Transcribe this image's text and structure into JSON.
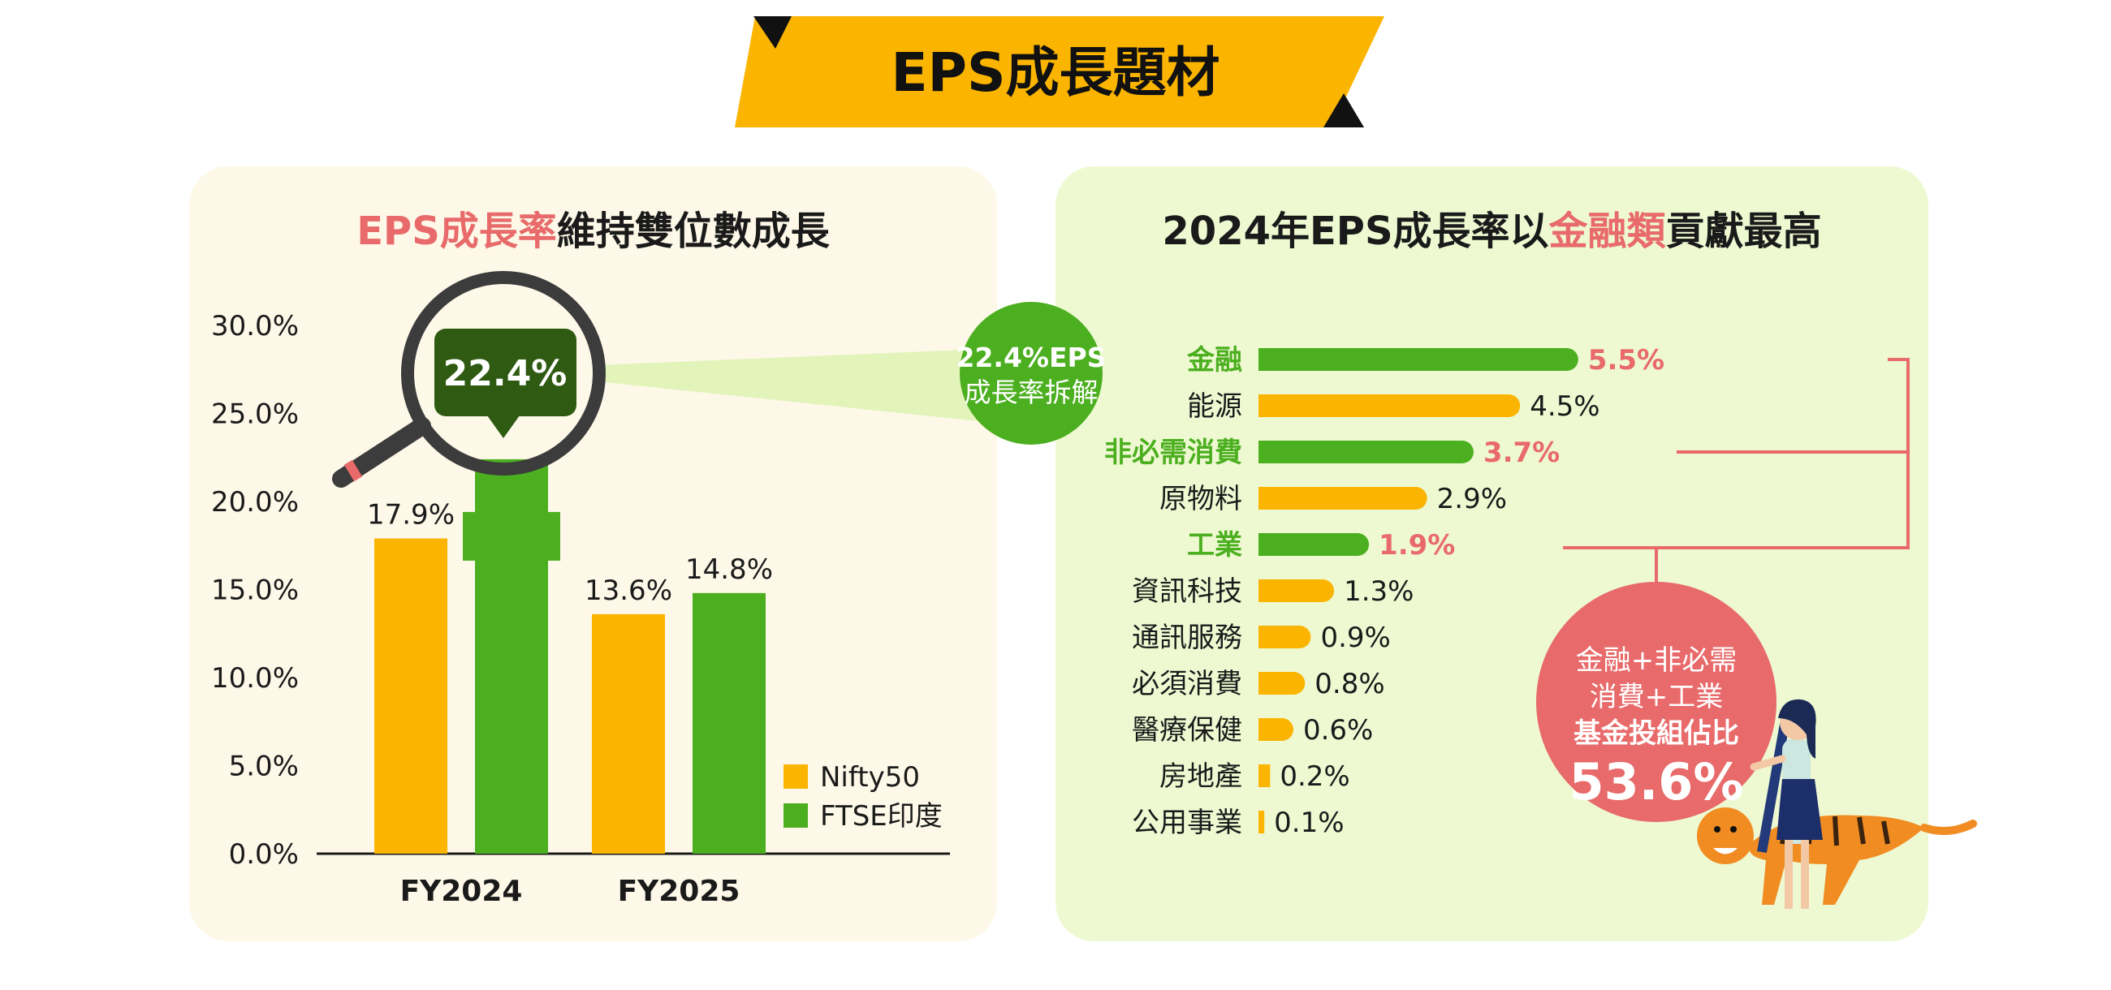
{
  "banner": {
    "title": "EPS成長題材"
  },
  "left": {
    "title_highlight": "EPS成長率",
    "title_rest": "維持雙位數成長",
    "callout_value": "22.4%"
  },
  "right": {
    "title_pre": "2024年EPS成長率以",
    "title_highlight": "金融類",
    "title_post": "貢獻最高",
    "bubble": {
      "line1": "22.4%EPS",
      "line2": "成長率拆解"
    },
    "summary": {
      "line1": "金融+非必需",
      "line2": "消費+工業",
      "line3": "基金投組佔比",
      "value": "53.6%"
    }
  },
  "colors": {
    "orange": "#fbb400",
    "green": "#4caf1f",
    "red": "#e86a6a",
    "dark_green": "#2e5a12"
  },
  "chart_data": [
    {
      "type": "bar",
      "categories": [
        "FY2024",
        "FY2025"
      ],
      "series": [
        {
          "name": "Nifty50",
          "values": [
            17.9,
            13.6
          ],
          "labels": [
            "17.9%",
            "13.6%"
          ],
          "color": "#fbb400"
        },
        {
          "name": "FTSE印度",
          "values": [
            22.4,
            14.8
          ],
          "labels": [
            "22.4%",
            "14.8%"
          ],
          "color": "#4caf1f"
        }
      ],
      "yticks": [
        "0.0%",
        "5.0%",
        "10.0%",
        "15.0%",
        "20.0%",
        "25.0%",
        "30.0%"
      ],
      "ylim": [
        0,
        30
      ],
      "legend": "bottom-right"
    },
    {
      "type": "bar",
      "orientation": "horizontal",
      "categories": [
        "金融",
        "能源",
        "非必需消費",
        "原物料",
        "工業",
        "資訊科技",
        "通訊服務",
        "必須消費",
        "醫療保健",
        "房地產",
        "公用事業"
      ],
      "values": [
        5.5,
        4.5,
        3.7,
        2.9,
        1.9,
        1.3,
        0.9,
        0.8,
        0.6,
        0.2,
        0.1
      ],
      "labels": [
        "5.5%",
        "4.5%",
        "3.7%",
        "2.9%",
        "1.9%",
        "1.3%",
        "0.9%",
        "0.8%",
        "0.6%",
        "0.2%",
        "0.1%"
      ],
      "highlighted": [
        true,
        false,
        true,
        false,
        true,
        false,
        false,
        false,
        false,
        false,
        false
      ]
    }
  ]
}
